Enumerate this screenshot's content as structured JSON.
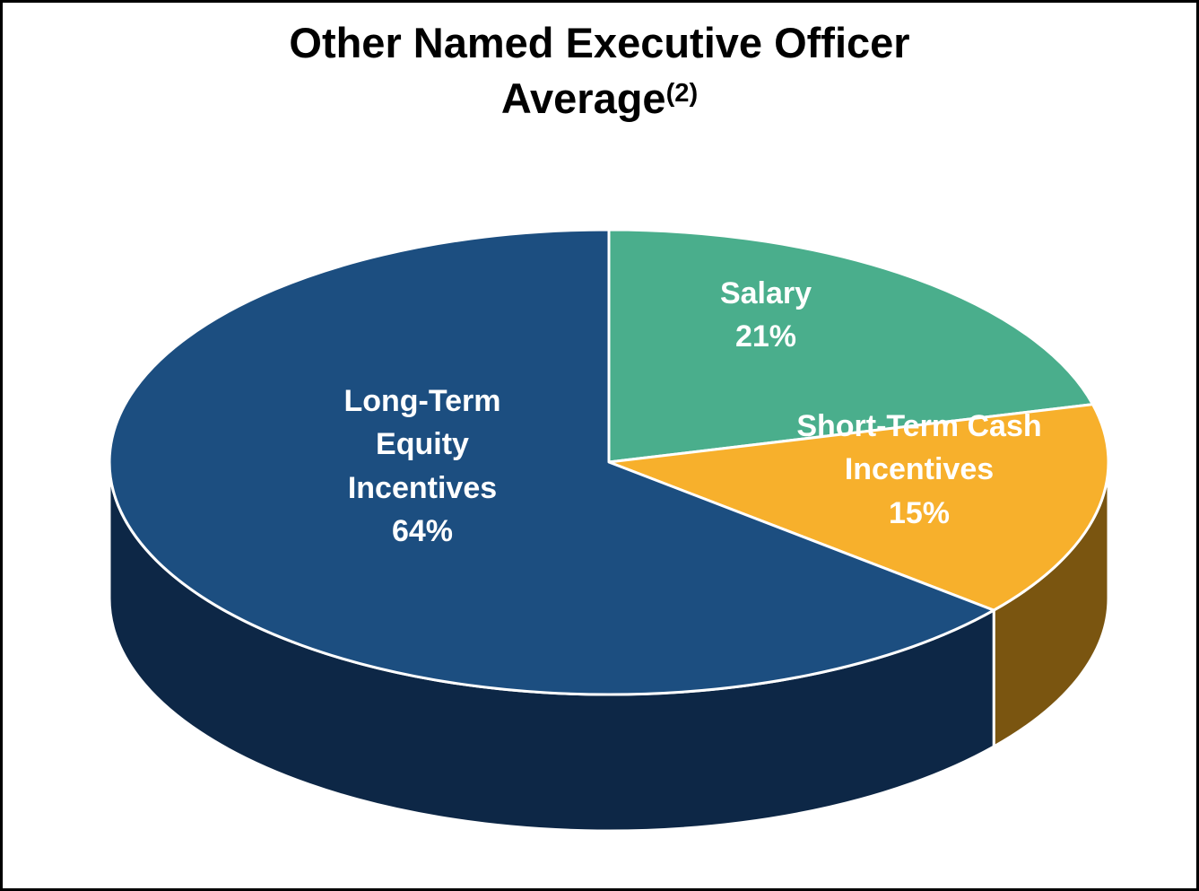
{
  "title": {
    "line1": "Other Named Executive Officer",
    "line2": "Average",
    "superscript": "(2)"
  },
  "chart_data": {
    "type": "pie",
    "title": "Other Named Executive Officer Average(2)",
    "effect": "3d",
    "legend_position": "none",
    "start_angle_deg": 0,
    "direction": "clockwise",
    "stroke_color": "#ffffff",
    "slices": [
      {
        "label": "Salary",
        "value": 21,
        "pct_label": "21%",
        "color": "#4AAE8C"
      },
      {
        "label": "Short-Term Cash Incentives",
        "value": 15,
        "pct_label": "15%",
        "color": "#F7B02C",
        "side_color": "#7A5510"
      },
      {
        "label": "Long-Term Equity Incentives",
        "value": 64,
        "pct_label": "64%",
        "color": "#1C4E80",
        "side_color": "#0D2746"
      }
    ]
  }
}
